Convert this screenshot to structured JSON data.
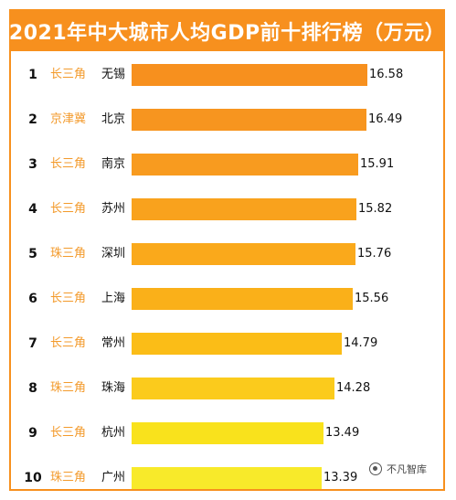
{
  "title": "2021年中大城市人均GDP前十排行榜（万元）",
  "watermark": "不凡智库",
  "chart_data": {
    "type": "bar",
    "orientation": "horizontal",
    "title": "2021年中大城市人均GDP前十排行榜（万元）",
    "categories": [
      "无锡",
      "北京",
      "南京",
      "苏州",
      "深圳",
      "上海",
      "常州",
      "珠海",
      "杭州",
      "广州"
    ],
    "ranks": [
      "1",
      "2",
      "3",
      "4",
      "5",
      "6",
      "7",
      "8",
      "9",
      "10"
    ],
    "regions": [
      "长三角",
      "京津冀",
      "长三角",
      "长三角",
      "珠三角",
      "长三角",
      "长三角",
      "珠三角",
      "长三角",
      "珠三角"
    ],
    "values": [
      16.58,
      16.49,
      15.91,
      15.82,
      15.76,
      15.56,
      14.79,
      14.28,
      13.49,
      13.39
    ],
    "value_labels": [
      "16.58",
      "16.49",
      "15.91",
      "15.82",
      "15.76",
      "15.56",
      "14.79",
      "14.28",
      "13.49",
      "13.39"
    ],
    "bar_colors": [
      "#f7901e",
      "#f7951f",
      "#f89b1f",
      "#f9a21d",
      "#faa91b",
      "#fab019",
      "#fbbd17",
      "#fbcb1c",
      "#f9e21c",
      "#f8ea2a"
    ],
    "region_color": "#f39a2b",
    "xlim": [
      0,
      16.58
    ]
  }
}
